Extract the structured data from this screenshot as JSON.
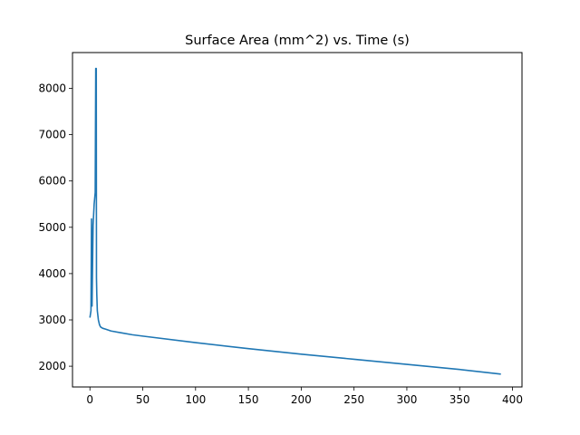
{
  "chart_data": {
    "type": "line",
    "title": "Surface Area (mm^2) vs. Time (s)",
    "xlabel": "",
    "ylabel": "",
    "xlim": [
      -16.5,
      409
    ],
    "ylim": [
      1552,
      8773
    ],
    "xticks": [
      0,
      50,
      100,
      150,
      200,
      250,
      300,
      350,
      400
    ],
    "yticks": [
      2000,
      3000,
      4000,
      5000,
      6000,
      7000,
      8000
    ],
    "xtick_labels": [
      "0",
      "50",
      "100",
      "150",
      "200",
      "250",
      "300",
      "350",
      "400"
    ],
    "ytick_labels": [
      "2000",
      "3000",
      "4000",
      "5000",
      "6000",
      "7000",
      "8000"
    ],
    "grid": false,
    "series": [
      {
        "color": "#1f77b4",
        "x": [
          0,
          1,
          1.5,
          2,
          2.5,
          3,
          4,
          5,
          5.5,
          6,
          6.2,
          6.5,
          7,
          8,
          9,
          10,
          12,
          15,
          20,
          30,
          40,
          50,
          100,
          150,
          200,
          250,
          300,
          350,
          389
        ],
        "y": [
          3050,
          3200,
          5180,
          3300,
          4200,
          5050,
          5500,
          5750,
          8430,
          8430,
          3900,
          3550,
          3200,
          3000,
          2900,
          2850,
          2820,
          2800,
          2760,
          2720,
          2680,
          2650,
          2510,
          2380,
          2260,
          2150,
          2040,
          1930,
          1830
        ]
      }
    ]
  }
}
